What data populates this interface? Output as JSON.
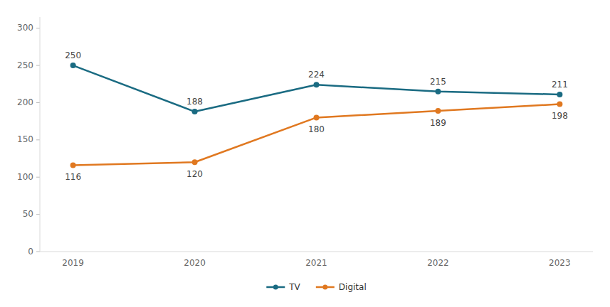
{
  "chart_data": {
    "type": "line",
    "categories": [
      "2019",
      "2020",
      "2021",
      "2022",
      "2023"
    ],
    "series": [
      {
        "name": "TV",
        "color": "#1a6b82",
        "marker": "circle",
        "values": [
          250,
          188,
          224,
          215,
          211
        ]
      },
      {
        "name": "Digital",
        "color": "#e07820",
        "marker": "circle",
        "values": [
          116,
          120,
          180,
          189,
          198
        ]
      }
    ],
    "ylim": [
      0,
      315
    ],
    "yticks": [
      0,
      50,
      100,
      150,
      200,
      250,
      300
    ],
    "grid": false,
    "legend": "bottom",
    "data_labels": true
  }
}
